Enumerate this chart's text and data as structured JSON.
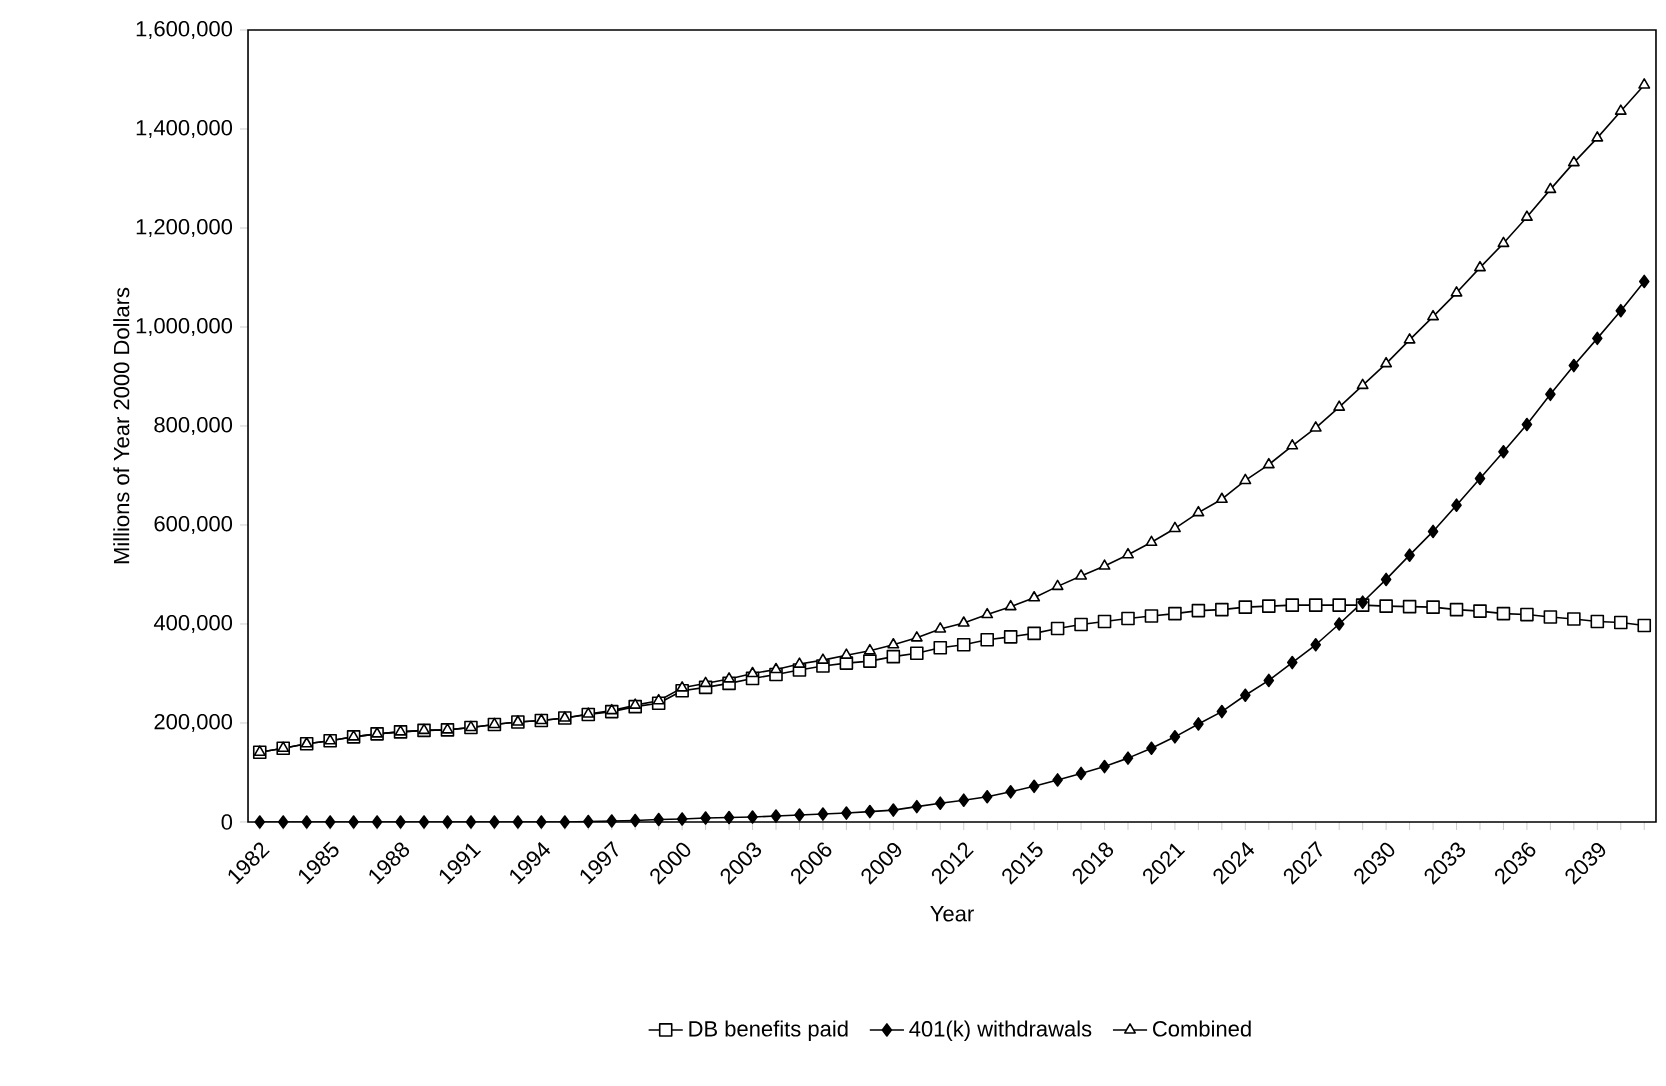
{
  "chart_data": {
    "type": "line",
    "xlabel": "Year",
    "ylabel": "Millions of Year 2000 Dollars",
    "categories": [
      "1982",
      null,
      null,
      "1985",
      null,
      null,
      "1988",
      null,
      null,
      "1991",
      null,
      null,
      "1994",
      null,
      null,
      "1997",
      null,
      null,
      "2000",
      null,
      null,
      "2003",
      null,
      null,
      "2006",
      null,
      null,
      "2009",
      null,
      null,
      "2012",
      null,
      null,
      "2015",
      null,
      null,
      "2018",
      null,
      null,
      "2021",
      null,
      null,
      "2024",
      null,
      null,
      "2027",
      null,
      null,
      "2030",
      null,
      null,
      "2033",
      null,
      null,
      "2036",
      null,
      null,
      "2039",
      null,
      null
    ],
    "ylim": [
      0,
      1600000
    ],
    "yticks": [
      0,
      {
        "value": 200000,
        "label": "200,000"
      },
      {
        "value": 400000,
        "label": "400,000"
      },
      {
        "value": 600000,
        "label": "600,000"
      },
      {
        "value": 800000,
        "label": "800,000"
      },
      {
        "value": 1000000,
        "label": "1,000,000"
      },
      {
        "value": 1200000,
        "label": "1,200,000"
      },
      {
        "value": 1400000,
        "label": "1,400,000"
      },
      {
        "value": 1600000,
        "label": "1,600,000"
      }
    ],
    "grid": false,
    "legend": "bottom",
    "line_style": "solid",
    "series": [
      {
        "name": "DB benefits paid",
        "color": "#000000",
        "marker": "square",
        "values": [
          141000,
          149000,
          158000,
          164000,
          172000,
          178000,
          182000,
          185000,
          186000,
          191000,
          197000,
          202000,
          205000,
          210000,
          217000,
          223000,
          233000,
          240000,
          265000,
          272000,
          280000,
          290000,
          298000,
          307000,
          315000,
          321000,
          325000,
          334000,
          341000,
          352000,
          358000,
          368000,
          374000,
          381000,
          391000,
          399000,
          405000,
          411000,
          416000,
          421000,
          427000,
          429000,
          434000,
          436000,
          438000,
          438000,
          438000,
          438000,
          436000,
          435000,
          434000,
          429000,
          426000,
          421000,
          419000,
          414000,
          410000,
          405000,
          403000,
          397000
        ]
      },
      {
        "name": "401(k) withdrawals",
        "color": "#000000",
        "marker": "diamond",
        "values": [
          0,
          0,
          0,
          0,
          0,
          0,
          0,
          0,
          0,
          0,
          0,
          0,
          0,
          0,
          1000,
          2000,
          3000,
          5000,
          6000,
          8000,
          9000,
          10000,
          12000,
          14000,
          16000,
          18000,
          21000,
          24000,
          31000,
          38000,
          44000,
          51000,
          61000,
          72000,
          85000,
          98000,
          112000,
          129000,
          149000,
          172000,
          198000,
          223000,
          256000,
          286000,
          322000,
          358000,
          400000,
          444000,
          490000,
          539000,
          587000,
          640000,
          694000,
          748000,
          803000,
          864000,
          922000,
          977000,
          1033000,
          1092000
        ]
      },
      {
        "name": "Combined",
        "color": "#000000",
        "marker": "triangle",
        "values": [
          141000,
          149000,
          158000,
          164000,
          172000,
          178000,
          182000,
          185000,
          186000,
          191000,
          197000,
          202000,
          205000,
          210000,
          218000,
          225000,
          236000,
          245000,
          271000,
          280000,
          289000,
          300000,
          308000,
          319000,
          327000,
          337000,
          346000,
          358000,
          372000,
          390000,
          402000,
          419000,
          435000,
          453000,
          476000,
          497000,
          517000,
          540000,
          565000,
          593000,
          625000,
          652000,
          690000,
          722000,
          760000,
          796000,
          838000,
          882000,
          926000,
          974000,
          1021000,
          1069000,
          1120000,
          1169000,
          1222000,
          1278000,
          1332000,
          1382000,
          1436000,
          1489000
        ]
      }
    ]
  }
}
